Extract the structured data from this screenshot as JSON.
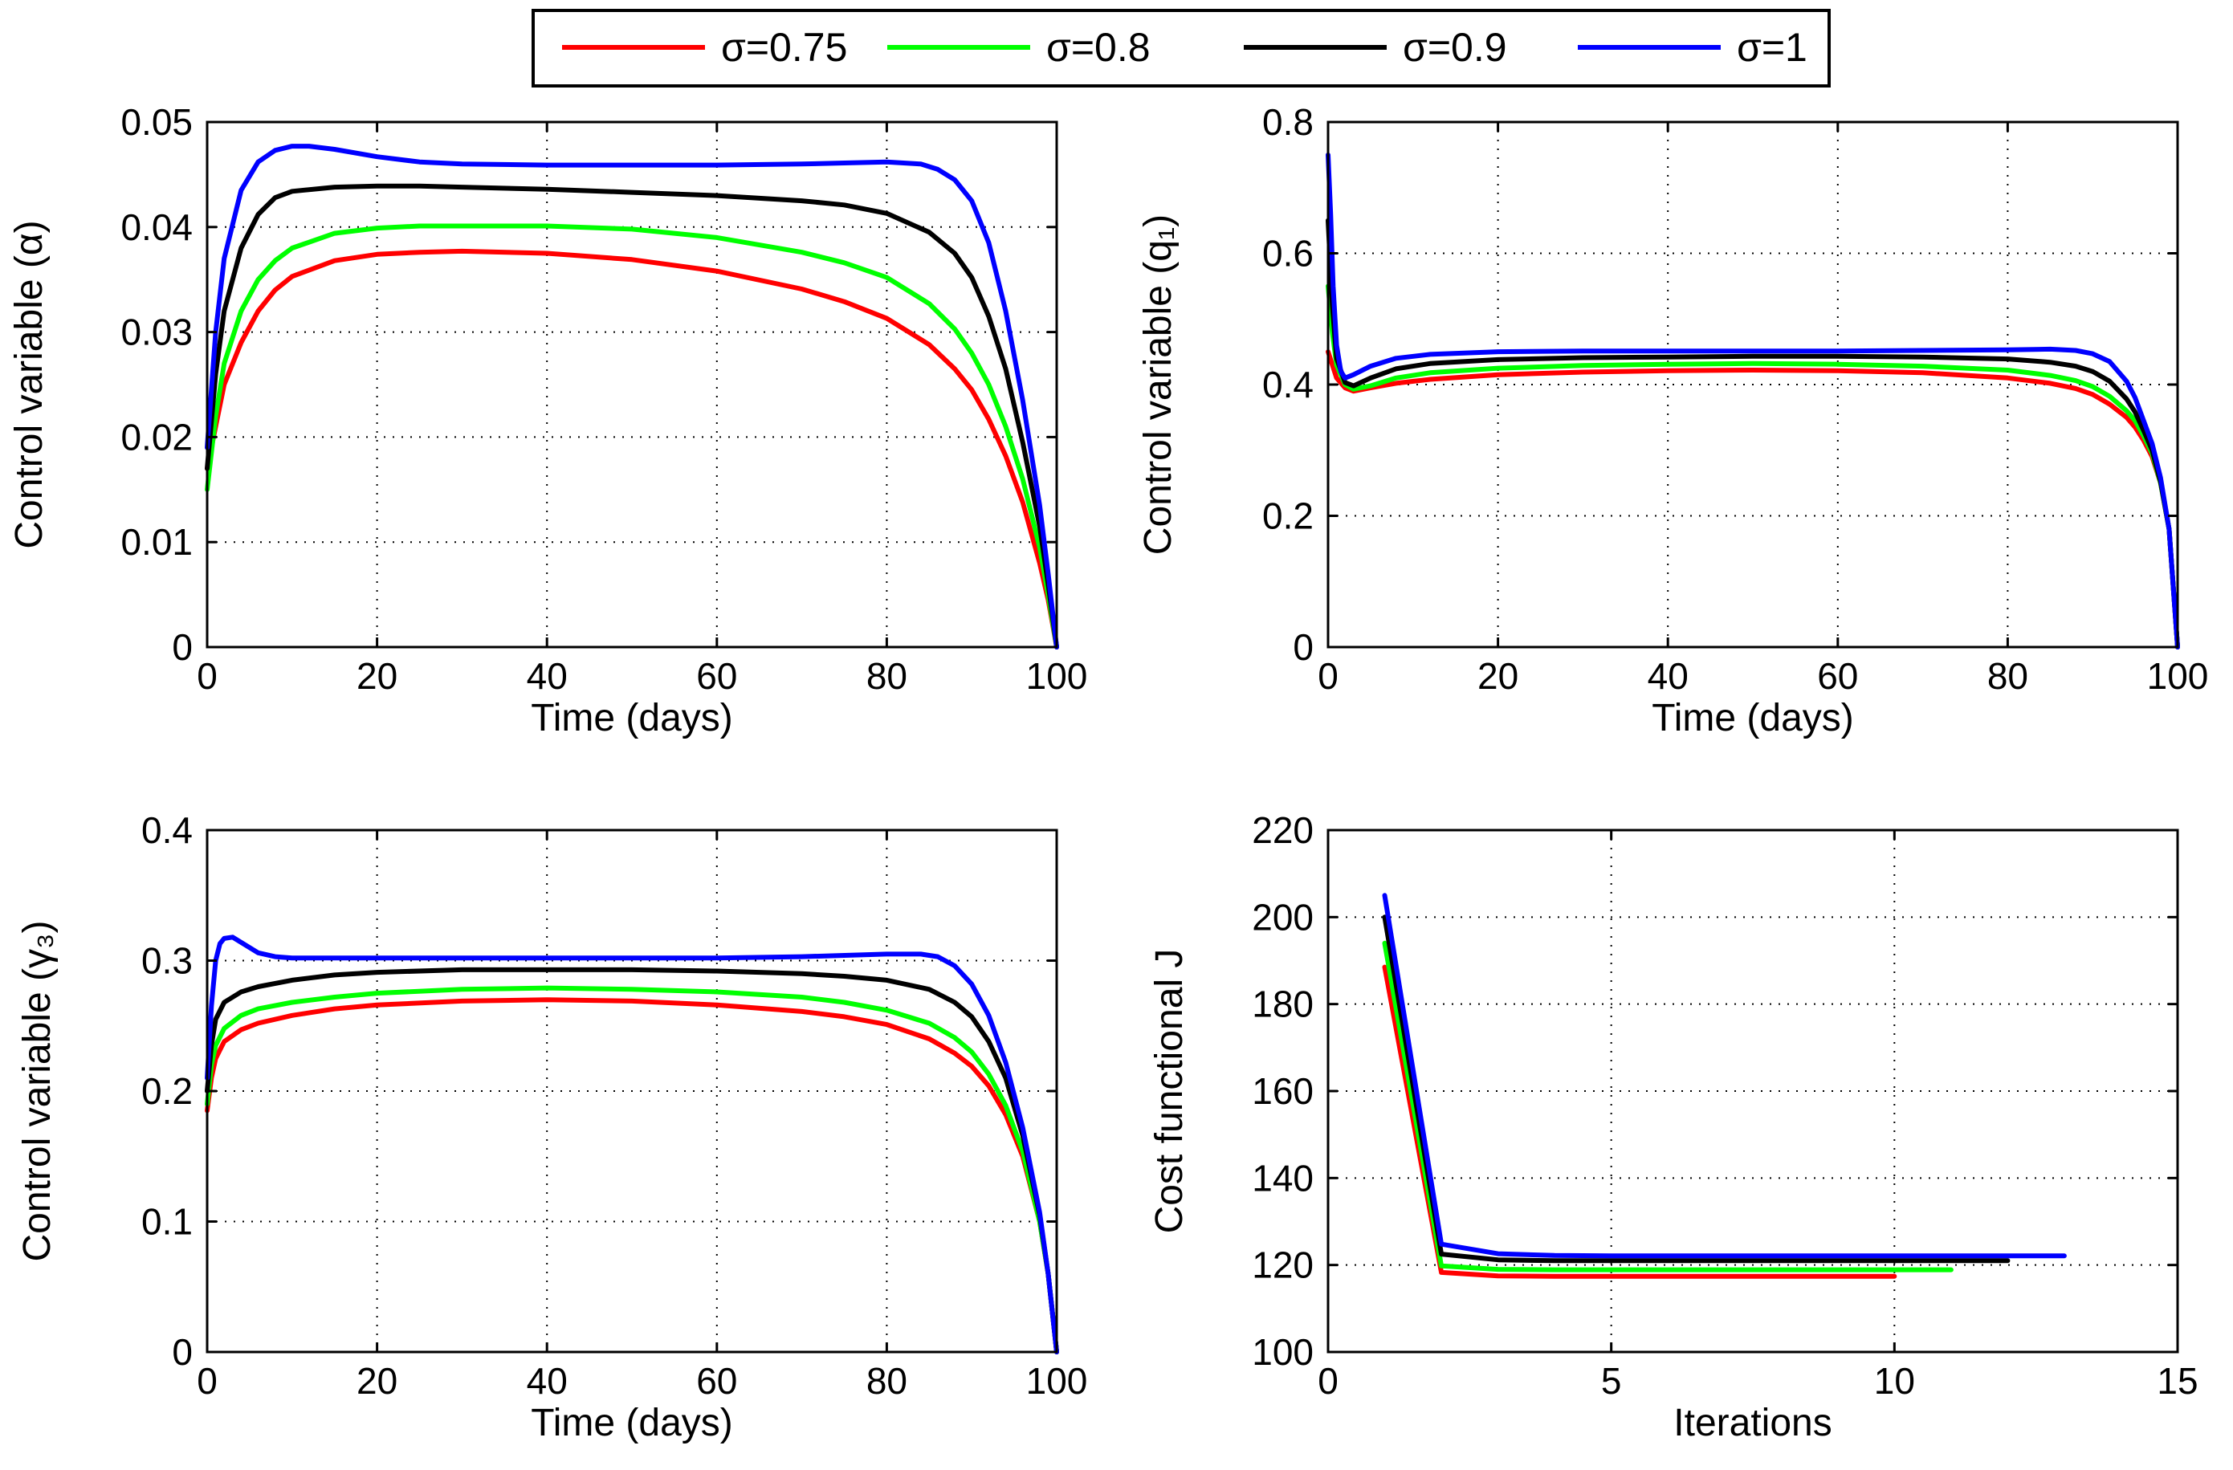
{
  "legend": {
    "entries": [
      {
        "label": "σ=0.75",
        "color": "#ff0000"
      },
      {
        "label": "σ=0.8",
        "color": "#00ff00"
      },
      {
        "label": "σ=0.9",
        "color": "#000000"
      },
      {
        "label": "σ=1",
        "color": "#0000ff"
      }
    ]
  },
  "chart_data": [
    {
      "type": "line",
      "id": "alpha",
      "xlabel": "Time (days)",
      "ylabel": "Control variable (α)",
      "xlim": [
        0,
        100
      ],
      "ylim": [
        0,
        0.05
      ],
      "xticks": [
        0,
        20,
        40,
        60,
        80,
        100
      ],
      "xtick_labels": [
        "0",
        "20",
        "40",
        "60",
        "80",
        "100"
      ],
      "yticks": [
        0,
        0.01,
        0.02,
        0.03,
        0.04,
        0.05
      ],
      "ytick_labels": [
        "0",
        "0.01",
        "0.02",
        "0.03",
        "0.04",
        "0.05"
      ],
      "grid": true,
      "series": [
        {
          "name": "σ=0.75",
          "color": "#ff0000",
          "x": [
            0,
            1,
            2,
            4,
            6,
            8,
            10,
            15,
            20,
            25,
            30,
            40,
            50,
            60,
            70,
            75,
            80,
            85,
            88,
            90,
            92,
            94,
            96,
            98,
            99,
            100
          ],
          "y": [
            0.017,
            0.021,
            0.025,
            0.029,
            0.032,
            0.034,
            0.0353,
            0.0368,
            0.0374,
            0.0376,
            0.0377,
            0.0375,
            0.0369,
            0.0358,
            0.0341,
            0.0329,
            0.0313,
            0.0288,
            0.0265,
            0.0245,
            0.0217,
            0.0182,
            0.0138,
            0.008,
            0.0045,
            0.0
          ]
        },
        {
          "name": "σ=0.8",
          "color": "#00ff00",
          "x": [
            0,
            1,
            2,
            4,
            6,
            8,
            10,
            15,
            20,
            25,
            30,
            40,
            50,
            60,
            70,
            75,
            80,
            85,
            88,
            90,
            92,
            94,
            96,
            98,
            99,
            100
          ],
          "y": [
            0.015,
            0.022,
            0.027,
            0.032,
            0.035,
            0.0368,
            0.038,
            0.0394,
            0.0399,
            0.0401,
            0.0401,
            0.0401,
            0.0398,
            0.039,
            0.0376,
            0.0366,
            0.0352,
            0.0327,
            0.0303,
            0.028,
            0.025,
            0.021,
            0.016,
            0.0095,
            0.005,
            0.0
          ]
        },
        {
          "name": "σ=0.9",
          "color": "#000000",
          "x": [
            0,
            1,
            2,
            4,
            6,
            8,
            10,
            15,
            20,
            25,
            30,
            40,
            50,
            60,
            70,
            75,
            80,
            85,
            88,
            90,
            92,
            94,
            96,
            98,
            99,
            100
          ],
          "y": [
            0.017,
            0.026,
            0.032,
            0.038,
            0.0412,
            0.0428,
            0.0434,
            0.0438,
            0.0439,
            0.0439,
            0.0438,
            0.0436,
            0.0433,
            0.043,
            0.0425,
            0.0421,
            0.0413,
            0.0395,
            0.0375,
            0.0352,
            0.0315,
            0.0265,
            0.0195,
            0.0115,
            0.006,
            0.0
          ]
        },
        {
          "name": "σ=1",
          "color": "#0000ff",
          "x": [
            0,
            1,
            2,
            4,
            6,
            8,
            10,
            12,
            15,
            20,
            25,
            30,
            40,
            50,
            60,
            70,
            75,
            80,
            84,
            86,
            88,
            90,
            92,
            94,
            96,
            98,
            99,
            100
          ],
          "y": [
            0.019,
            0.03,
            0.037,
            0.0435,
            0.0462,
            0.0473,
            0.0477,
            0.0477,
            0.0474,
            0.0467,
            0.0462,
            0.046,
            0.0459,
            0.0459,
            0.0459,
            0.046,
            0.0461,
            0.0462,
            0.046,
            0.0455,
            0.0445,
            0.0425,
            0.0385,
            0.032,
            0.0235,
            0.0135,
            0.007,
            0.0
          ]
        }
      ]
    },
    {
      "type": "line",
      "id": "q1",
      "xlabel": "Time (days)",
      "ylabel": "Control variable (q₁)",
      "xlim": [
        0,
        100
      ],
      "ylim": [
        0,
        0.8
      ],
      "xticks": [
        0,
        20,
        40,
        60,
        80,
        100
      ],
      "xtick_labels": [
        "0",
        "20",
        "40",
        "60",
        "80",
        "100"
      ],
      "yticks": [
        0,
        0.2,
        0.4,
        0.6,
        0.8
      ],
      "ytick_labels": [
        "0",
        "0.2",
        "0.4",
        "0.6",
        "0.8"
      ],
      "grid": true,
      "series": [
        {
          "name": "σ=0.75",
          "color": "#ff0000",
          "x": [
            0,
            0.5,
            1,
            2,
            3,
            5,
            8,
            12,
            20,
            30,
            40,
            50,
            60,
            70,
            80,
            85,
            88,
            90,
            92,
            94,
            95,
            96,
            97,
            98,
            99,
            100
          ],
          "y": [
            0.45,
            0.43,
            0.41,
            0.395,
            0.39,
            0.395,
            0.402,
            0.408,
            0.415,
            0.419,
            0.421,
            0.422,
            0.421,
            0.418,
            0.41,
            0.402,
            0.394,
            0.385,
            0.37,
            0.35,
            0.335,
            0.315,
            0.29,
            0.25,
            0.18,
            0.0
          ]
        },
        {
          "name": "σ=0.8",
          "color": "#00ff00",
          "x": [
            0,
            0.5,
            1,
            2,
            3,
            5,
            8,
            12,
            20,
            30,
            40,
            50,
            60,
            70,
            80,
            85,
            88,
            90,
            92,
            94,
            95,
            96,
            97,
            98,
            99,
            100
          ],
          "y": [
            0.55,
            0.48,
            0.43,
            0.4,
            0.393,
            0.398,
            0.41,
            0.418,
            0.425,
            0.429,
            0.431,
            0.432,
            0.431,
            0.428,
            0.422,
            0.414,
            0.406,
            0.397,
            0.382,
            0.36,
            0.345,
            0.322,
            0.295,
            0.25,
            0.18,
            0.0
          ]
        },
        {
          "name": "σ=0.9",
          "color": "#000000",
          "x": [
            0,
            0.5,
            1,
            2,
            3,
            5,
            8,
            12,
            20,
            30,
            40,
            50,
            60,
            70,
            80,
            85,
            88,
            90,
            92,
            94,
            95,
            96,
            97,
            98,
            99,
            100
          ],
          "y": [
            0.65,
            0.52,
            0.44,
            0.403,
            0.398,
            0.41,
            0.424,
            0.432,
            0.438,
            0.441,
            0.442,
            0.443,
            0.443,
            0.442,
            0.439,
            0.434,
            0.428,
            0.42,
            0.405,
            0.378,
            0.358,
            0.33,
            0.3,
            0.252,
            0.18,
            0.0
          ]
        },
        {
          "name": "σ=1",
          "color": "#0000ff",
          "x": [
            0,
            0.3,
            0.6,
            1,
            1.5,
            2,
            3,
            5,
            8,
            12,
            20,
            30,
            40,
            50,
            60,
            70,
            80,
            85,
            88,
            90,
            92,
            94,
            95,
            96,
            97,
            98,
            99,
            100
          ],
          "y": [
            0.75,
            0.66,
            0.55,
            0.46,
            0.42,
            0.41,
            0.415,
            0.428,
            0.44,
            0.446,
            0.45,
            0.451,
            0.451,
            0.451,
            0.451,
            0.452,
            0.453,
            0.454,
            0.452,
            0.447,
            0.435,
            0.405,
            0.38,
            0.345,
            0.31,
            0.258,
            0.18,
            0.0
          ]
        }
      ]
    },
    {
      "type": "line",
      "id": "gamma3",
      "xlabel": "Time (days)",
      "ylabel": "Control variable (γ₃)",
      "xlim": [
        0,
        100
      ],
      "ylim": [
        0,
        0.4
      ],
      "xticks": [
        0,
        20,
        40,
        60,
        80,
        100
      ],
      "xtick_labels": [
        "0",
        "20",
        "40",
        "60",
        "80",
        "100"
      ],
      "yticks": [
        0,
        0.1,
        0.2,
        0.3,
        0.4
      ],
      "ytick_labels": [
        "0",
        "0.1",
        "0.2",
        "0.3",
        "0.4"
      ],
      "grid": true,
      "series": [
        {
          "name": "σ=0.75",
          "color": "#ff0000",
          "x": [
            0,
            0.5,
            1,
            2,
            4,
            6,
            10,
            15,
            20,
            30,
            40,
            50,
            60,
            70,
            75,
            80,
            85,
            88,
            90,
            92,
            94,
            96,
            98,
            99,
            100
          ],
          "y": [
            0.185,
            0.21,
            0.225,
            0.238,
            0.247,
            0.252,
            0.258,
            0.263,
            0.266,
            0.269,
            0.27,
            0.269,
            0.266,
            0.261,
            0.257,
            0.251,
            0.24,
            0.229,
            0.219,
            0.204,
            0.182,
            0.15,
            0.1,
            0.06,
            0.0
          ]
        },
        {
          "name": "σ=0.8",
          "color": "#00ff00",
          "x": [
            0,
            0.5,
            1,
            2,
            4,
            6,
            10,
            15,
            20,
            30,
            40,
            50,
            60,
            70,
            75,
            80,
            85,
            88,
            90,
            92,
            94,
            96,
            98,
            99,
            100
          ],
          "y": [
            0.19,
            0.22,
            0.235,
            0.248,
            0.258,
            0.263,
            0.268,
            0.272,
            0.275,
            0.278,
            0.279,
            0.278,
            0.276,
            0.272,
            0.268,
            0.262,
            0.252,
            0.241,
            0.23,
            0.213,
            0.189,
            0.154,
            0.1,
            0.06,
            0.0
          ]
        },
        {
          "name": "σ=0.9",
          "color": "#000000",
          "x": [
            0,
            0.5,
            1,
            2,
            4,
            6,
            10,
            15,
            20,
            30,
            40,
            50,
            60,
            70,
            75,
            80,
            85,
            88,
            90,
            92,
            94,
            96,
            98,
            99,
            100
          ],
          "y": [
            0.2,
            0.235,
            0.255,
            0.268,
            0.276,
            0.28,
            0.285,
            0.289,
            0.291,
            0.293,
            0.293,
            0.293,
            0.292,
            0.29,
            0.288,
            0.285,
            0.278,
            0.268,
            0.257,
            0.238,
            0.21,
            0.166,
            0.105,
            0.06,
            0.0
          ]
        },
        {
          "name": "σ=1",
          "color": "#0000ff",
          "x": [
            0,
            0.5,
            1,
            1.5,
            2,
            3,
            4,
            6,
            8,
            10,
            15,
            20,
            30,
            40,
            50,
            60,
            70,
            80,
            84,
            86,
            88,
            90,
            92,
            94,
            96,
            98,
            99,
            100
          ],
          "y": [
            0.21,
            0.265,
            0.3,
            0.313,
            0.317,
            0.318,
            0.314,
            0.306,
            0.303,
            0.302,
            0.302,
            0.302,
            0.302,
            0.302,
            0.302,
            0.302,
            0.303,
            0.305,
            0.305,
            0.303,
            0.296,
            0.282,
            0.258,
            0.222,
            0.172,
            0.107,
            0.06,
            0.0
          ]
        }
      ]
    },
    {
      "type": "line",
      "id": "cost",
      "xlabel": "Iterations",
      "ylabel": "Cost functional J",
      "xlim": [
        0,
        15
      ],
      "ylim": [
        100,
        220
      ],
      "xticks": [
        0,
        5,
        10,
        15
      ],
      "xtick_labels": [
        "0",
        "5",
        "10",
        "15"
      ],
      "yticks": [
        100,
        120,
        140,
        160,
        180,
        200,
        220
      ],
      "ytick_labels": [
        "100",
        "120",
        "140",
        "160",
        "180",
        "200",
        "220"
      ],
      "grid": true,
      "series": [
        {
          "name": "σ=0.75",
          "color": "#ff0000",
          "x": [
            1,
            2,
            3,
            4,
            5,
            6,
            7,
            8,
            9,
            10
          ],
          "y": [
            188.5,
            118.3,
            117.5,
            117.4,
            117.4,
            117.4,
            117.4,
            117.4,
            117.4,
            117.4
          ]
        },
        {
          "name": "σ=0.8",
          "color": "#00ff00",
          "x": [
            1,
            2,
            3,
            4,
            5,
            6,
            7,
            8,
            9,
            10,
            11
          ],
          "y": [
            194,
            119.8,
            119.0,
            118.9,
            118.9,
            118.9,
            118.9,
            118.9,
            118.9,
            118.9,
            118.9
          ]
        },
        {
          "name": "σ=0.9",
          "color": "#000000",
          "x": [
            1,
            2,
            3,
            4,
            5,
            6,
            7,
            8,
            9,
            10,
            11,
            12
          ],
          "y": [
            200,
            122.5,
            121.2,
            121.0,
            121.0,
            121.0,
            121.0,
            121.0,
            121.0,
            121.0,
            121.0,
            121.0
          ]
        },
        {
          "name": "σ=1",
          "color": "#0000ff",
          "x": [
            1,
            2,
            3,
            4,
            5,
            6,
            7,
            8,
            9,
            10,
            11,
            12,
            13
          ],
          "y": [
            205,
            124.8,
            122.6,
            122.2,
            122.1,
            122.1,
            122.1,
            122.1,
            122.1,
            122.1,
            122.1,
            122.1,
            122.1
          ]
        }
      ]
    }
  ]
}
